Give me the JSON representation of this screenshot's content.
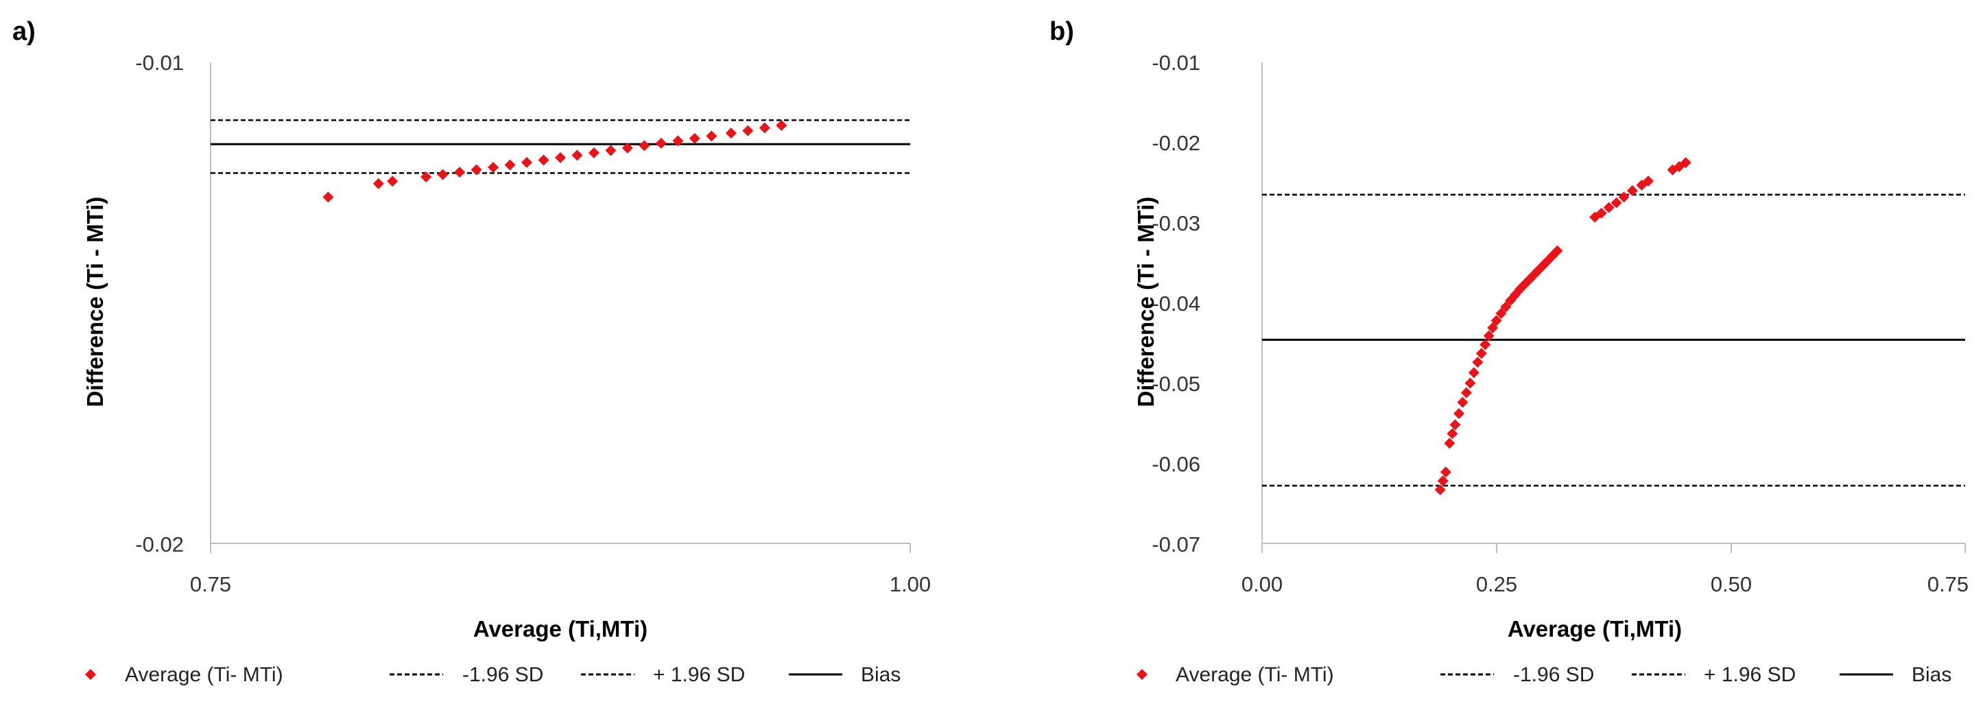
{
  "colors": {
    "points": "#e8141a",
    "lines": "#000000",
    "axis": "#bfbfbf"
  },
  "chart_data": [
    {
      "type": "scatter",
      "panel_label": "a)",
      "xlabel": "Average (Ti,MTi)",
      "ylabel": "Difference (Ti - MTi)",
      "xlim": [
        0.75,
        1.0
      ],
      "ylim": [
        -0.02,
        -0.01
      ],
      "xticks": [
        0.75,
        1.0
      ],
      "xtick_labels": [
        "0.75",
        "1.00"
      ],
      "yticks": [
        -0.01,
        -0.02
      ],
      "ytick_labels": [
        "-0.01",
        "-0.02"
      ],
      "lines": [
        {
          "name": "+ 1.96 SD",
          "y": -0.0112,
          "style": "dashed"
        },
        {
          "name": "Bias",
          "y": -0.0117,
          "style": "solid"
        },
        {
          "name": "-1.96 SD",
          "y": -0.0123,
          "style": "dashed"
        }
      ],
      "series": [
        {
          "name": "Average (Ti- MTi)",
          "marker": "diamond",
          "x": [
            0.792,
            0.81,
            0.815,
            0.827,
            0.833,
            0.839,
            0.845,
            0.851,
            0.857,
            0.863,
            0.869,
            0.875,
            0.881,
            0.887,
            0.893,
            0.899,
            0.905,
            0.911,
            0.917,
            0.923,
            0.929,
            0.936,
            0.942,
            0.948,
            0.954
          ],
          "y": [
            -0.0128,
            -0.01252,
            -0.01247,
            -0.01238,
            -0.01233,
            -0.01228,
            -0.01223,
            -0.01218,
            -0.01213,
            -0.01208,
            -0.01203,
            -0.01198,
            -0.01193,
            -0.01188,
            -0.01183,
            -0.01178,
            -0.01173,
            -0.01168,
            -0.01163,
            -0.01158,
            -0.01153,
            -0.01147,
            -0.01142,
            -0.01136,
            -0.01131
          ]
        }
      ],
      "legend": {
        "position": "bottom",
        "entries": [
          "Average (Ti- MTi)",
          "-1.96 SD",
          "+ 1.96 SD",
          "Bias"
        ]
      }
    },
    {
      "type": "scatter",
      "panel_label": "b)",
      "xlabel": "Average (Ti,MTi)",
      "ylabel": "Difference (Ti - MTi)",
      "xlim": [
        0.0,
        0.75
      ],
      "ylim": [
        -0.07,
        -0.01
      ],
      "xticks": [
        0.0,
        0.25,
        0.5,
        0.75
      ],
      "xtick_labels": [
        "0.00",
        "0.25",
        "0.50",
        "0.75"
      ],
      "yticks": [
        -0.01,
        -0.02,
        -0.03,
        -0.04,
        -0.05,
        -0.06,
        -0.07
      ],
      "ytick_labels": [
        "-0.01",
        "-0.02",
        "-0.03",
        "-0.04",
        "-0.05",
        "-0.06",
        "-0.07"
      ],
      "lines": [
        {
          "name": "+ 1.96 SD",
          "y": -0.0265,
          "style": "dashed"
        },
        {
          "name": "Bias",
          "y": -0.0446,
          "style": "solid"
        },
        {
          "name": "-1.96 SD",
          "y": -0.0628,
          "style": "dashed"
        }
      ],
      "series": [
        {
          "name": "Average (Ti- MTi)",
          "marker": "diamond",
          "x": [
            0.19,
            0.193,
            0.196,
            0.2,
            0.203,
            0.206,
            0.21,
            0.214,
            0.218,
            0.222,
            0.226,
            0.23,
            0.234,
            0.238,
            0.242,
            0.246,
            0.25,
            0.255,
            0.26,
            0.265,
            0.27,
            0.275,
            0.28,
            0.285,
            0.29,
            0.295,
            0.3,
            0.305,
            0.31,
            0.315,
            0.355,
            0.362,
            0.37,
            0.378,
            0.386,
            0.395,
            0.405,
            0.412,
            0.438,
            0.445,
            0.452
          ],
          "y": [
            -0.0633,
            -0.0622,
            -0.0611,
            -0.0575,
            -0.0563,
            -0.0552,
            -0.0538,
            -0.0524,
            -0.0512,
            -0.05,
            -0.0487,
            -0.0474,
            -0.0463,
            -0.0452,
            -0.0441,
            -0.0431,
            -0.0422,
            -0.0413,
            -0.0405,
            -0.0397,
            -0.039,
            -0.0383,
            -0.0377,
            -0.0371,
            -0.0365,
            -0.0359,
            -0.0353,
            -0.0347,
            -0.0341,
            -0.0335,
            -0.0293,
            -0.0288,
            -0.0281,
            -0.0275,
            -0.0268,
            -0.026,
            -0.0253,
            -0.0248,
            -0.0234,
            -0.023,
            -0.0225
          ]
        }
      ],
      "legend": {
        "position": "bottom",
        "entries": [
          "Average (Ti- MTi)",
          "-1.96 SD",
          "+ 1.96 SD",
          "Bias"
        ]
      }
    }
  ]
}
